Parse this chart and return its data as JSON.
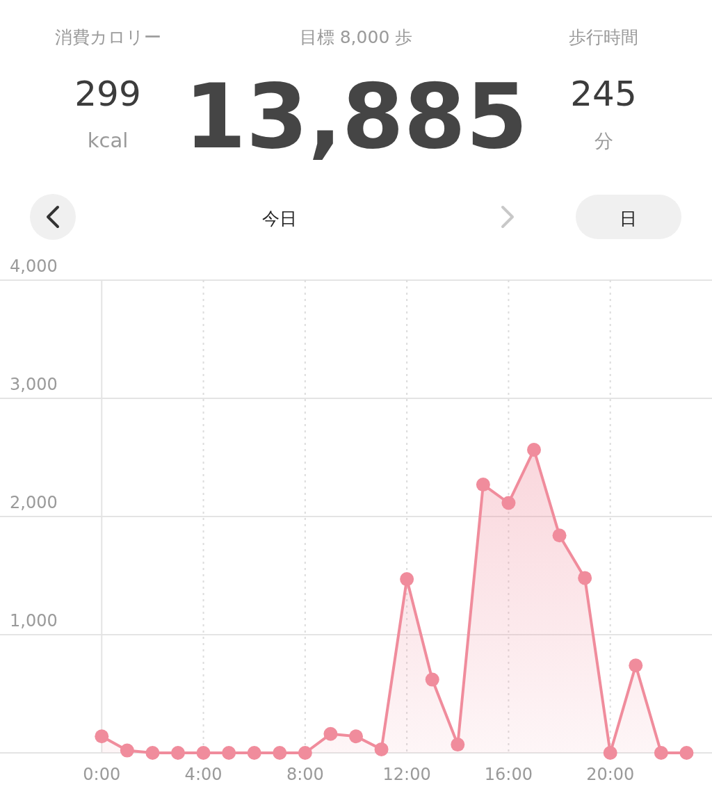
{
  "chart_data": [
    {
      "type": "other",
      "annotations": [
        "消費カロリー",
        "299",
        "kcal",
        "目標 8,000 歩",
        "13,885",
        "歩行時間",
        "245",
        "分",
        "今日",
        "日"
      ]
    },
    {
      "type": "area",
      "color": "#f08c9c",
      "marker": "circle",
      "grid": true,
      "x": [
        0,
        1,
        2,
        3,
        4,
        5,
        6,
        7,
        8,
        9,
        10,
        11,
        12,
        13,
        14,
        15,
        16,
        17,
        18,
        19,
        20,
        21,
        22,
        23
      ],
      "values": [
        140,
        20,
        0,
        0,
        0,
        0,
        0,
        0,
        0,
        160,
        140,
        30,
        1470,
        620,
        70,
        2270,
        2115,
        2565,
        1840,
        1480,
        0,
        740,
        0,
        0
      ],
      "xlim": [
        -4,
        24
      ],
      "ylim": [
        0,
        4000
      ],
      "xticks": [
        {
          "value": 0,
          "label": "0:00"
        },
        {
          "value": 4,
          "label": "4:00"
        },
        {
          "value": 8,
          "label": "8:00"
        },
        {
          "value": 12,
          "label": "12:00"
        },
        {
          "value": 16,
          "label": "16:00"
        },
        {
          "value": 20,
          "label": "20:00"
        }
      ],
      "yticks": [
        {
          "value": 1000,
          "label": "1,000"
        },
        {
          "value": 2000,
          "label": "2,000"
        },
        {
          "value": 3000,
          "label": "3,000"
        },
        {
          "value": 4000,
          "label": "4,000"
        }
      ]
    }
  ]
}
